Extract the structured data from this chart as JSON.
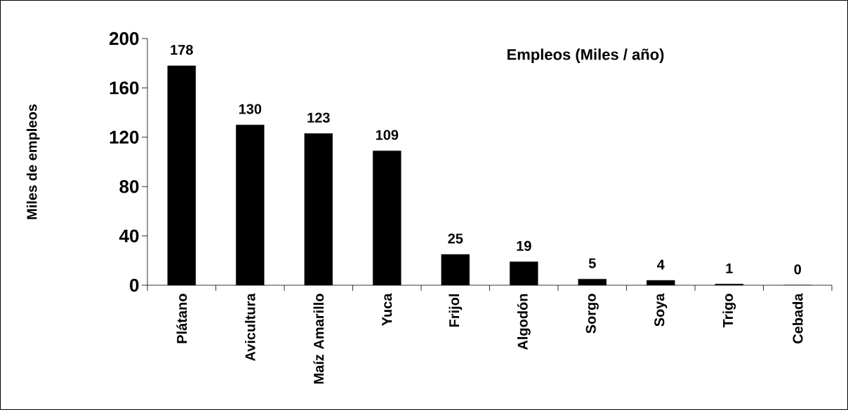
{
  "chart_data": {
    "type": "bar",
    "title": "Empleos (Miles / año)",
    "ylabel": "Miles de empleos",
    "categories": [
      "Plátano",
      "Avicultura",
      "Maíz Amarillo",
      "Yuca",
      "Frijol",
      "Algodón",
      "Sorgo",
      "Soya",
      "Trigo",
      "Cebada"
    ],
    "values": [
      178,
      130,
      123,
      109,
      25,
      19,
      5,
      4,
      1,
      0
    ],
    "color": "#000000",
    "ylim": [
      0,
      200
    ],
    "yticks": [
      0,
      40,
      80,
      120,
      160,
      200
    ],
    "data_labels": true
  }
}
